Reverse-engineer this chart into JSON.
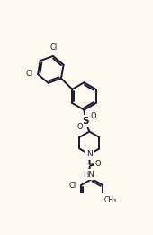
{
  "bg_color": "#fdf8f0",
  "line_color": "#1a1a2e",
  "lw": 1.4,
  "figsize": [
    1.7,
    2.6
  ],
  "dpi": 100,
  "xlim": [
    0.0,
    1.0
  ],
  "ylim": [
    0.0,
    1.0
  ]
}
